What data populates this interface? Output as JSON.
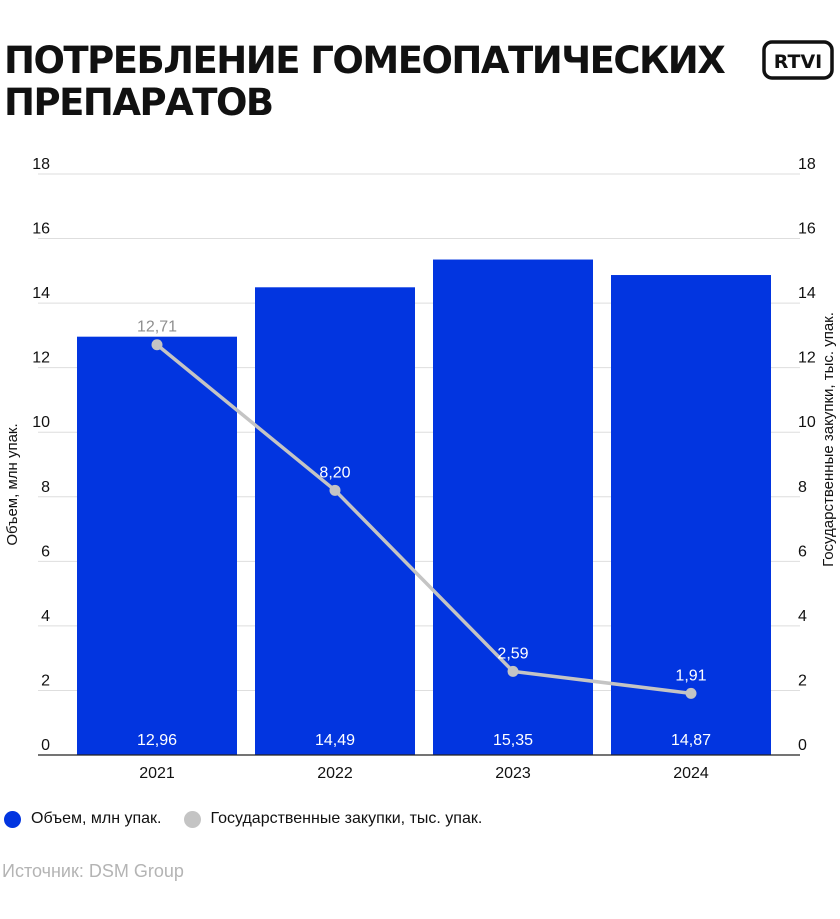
{
  "title": "ПОТРЕБЛЕНИЕ ГОМЕОПАТИЧЕСКИХ ПРЕПАРАТОВ",
  "logo": {
    "text": "RTVI",
    "color": "#111111"
  },
  "source": "Источник: DSM Group",
  "colors": {
    "bar": "#0235e0",
    "line": "#c4c4c4",
    "grid": "#dedede",
    "axis": "#222222",
    "bar_label": "#ffffff",
    "line_label_on_bar": "#d6d6d6",
    "line_label_off_bar": "#ffffff"
  },
  "legend": [
    {
      "label": "Объем, млн упак.",
      "color": "#0235e0"
    },
    {
      "label": "Государственные закупки, тыс. упак.",
      "color": "#c4c4c4"
    }
  ],
  "chart_data": {
    "type": "bar",
    "categories": [
      "2021",
      "2022",
      "2023",
      "2024"
    ],
    "series": [
      {
        "name": "Объем, млн упак.",
        "type": "bar",
        "axis": "left",
        "values": [
          12.96,
          14.49,
          15.35,
          14.87
        ],
        "labels": [
          "12,96",
          "14,49",
          "15,35",
          "14,87"
        ]
      },
      {
        "name": "Государственные закупки, тыс. упак.",
        "type": "line",
        "axis": "right",
        "values": [
          12.71,
          8.2,
          2.59,
          1.91
        ],
        "labels": [
          "12,71",
          "8,20",
          "2,59",
          "1,91"
        ]
      }
    ],
    "ylabel": "Объем, млн упак.",
    "y2label": "Государственные закупки, тыс. упак.",
    "ylim": [
      0,
      18
    ],
    "y2lim": [
      0,
      18
    ],
    "yticks": [
      "0",
      "2",
      "4",
      "6",
      "8",
      "10",
      "12",
      "14",
      "16",
      "18"
    ],
    "grid": true,
    "legend_position": "bottom-left"
  }
}
